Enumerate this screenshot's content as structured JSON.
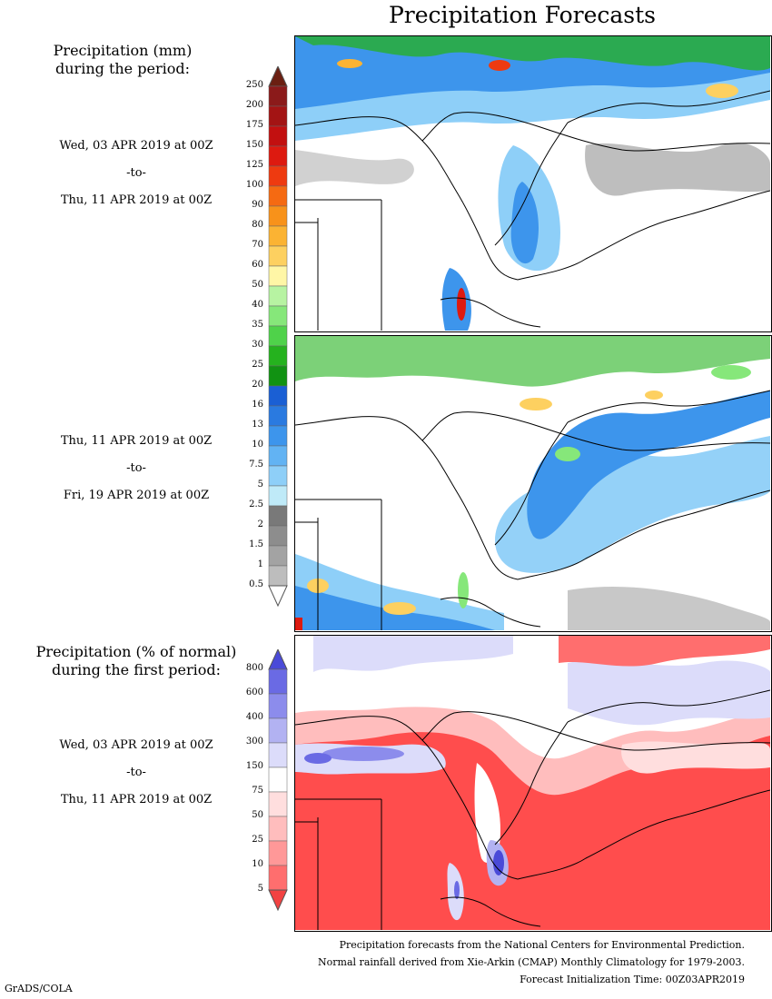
{
  "title": "Precipitation Forecasts",
  "legend1": {
    "heading_line1": "Precipitation (mm)",
    "heading_line2": "during the period:",
    "ticks": [
      "250",
      "200",
      "175",
      "150",
      "125",
      "100",
      "90",
      "80",
      "70",
      "60",
      "50",
      "40",
      "35",
      "30",
      "25",
      "20",
      "16",
      "13",
      "10",
      "7.5",
      "5",
      "2.5",
      "2",
      "1.5",
      "1",
      "0.5"
    ],
    "colors": [
      "#6b1f12",
      "#8b1a1a",
      "#a31414",
      "#c21010",
      "#dd1a10",
      "#ee3a10",
      "#f56a12",
      "#f8921a",
      "#fbb333",
      "#fdd060",
      "#fff6a6",
      "#b7f3a2",
      "#86e77a",
      "#4fd24a",
      "#25b21e",
      "#119212",
      "#1a5fd4",
      "#2a7ae0",
      "#3d95ec",
      "#62b3f3",
      "#8ecff8",
      "#bfeaf8",
      "#797979",
      "#8d8d8d",
      "#a3a3a3",
      "#bdbdbd",
      "#ffffff"
    ]
  },
  "legend2": {
    "heading_line1": "Precipitation (% of normal)",
    "heading_line2": "during the first period:",
    "ticks": [
      "800",
      "600",
      "400",
      "300",
      "150",
      "75",
      "50",
      "25",
      "10",
      "5"
    ],
    "colors": [
      "#4a4ad8",
      "#6a6ae4",
      "#8c8cec",
      "#b2b2f2",
      "#dcdcfa",
      "#ffffff",
      "#ffdede",
      "#ffbdbd",
      "#ff9898",
      "#ff6e6e",
      "#f24242"
    ]
  },
  "periods": [
    {
      "start": "Wed, 03 APR 2019 at 00Z",
      "sep": "-to-",
      "end": "Thu, 11 APR 2019 at 00Z"
    },
    {
      "start": "Thu, 11 APR 2019 at 00Z",
      "sep": "-to-",
      "end": "Fri, 19 APR 2019 at 00Z"
    },
    {
      "start": "Wed, 03 APR 2019 at 00Z",
      "sep": "-to-",
      "end": "Thu, 11 APR 2019 at 00Z"
    }
  ],
  "footer": {
    "line1": "Precipitation forecasts from the National Centers for Environmental Prediction.",
    "line2": "Normal rainfall derived from Xie-Arkin (CMAP) Monthly Climatology for 1979-2003.",
    "line3": "Forecast Initialization Time: 00Z03APR2019"
  },
  "credit": "GrADS/COLA"
}
